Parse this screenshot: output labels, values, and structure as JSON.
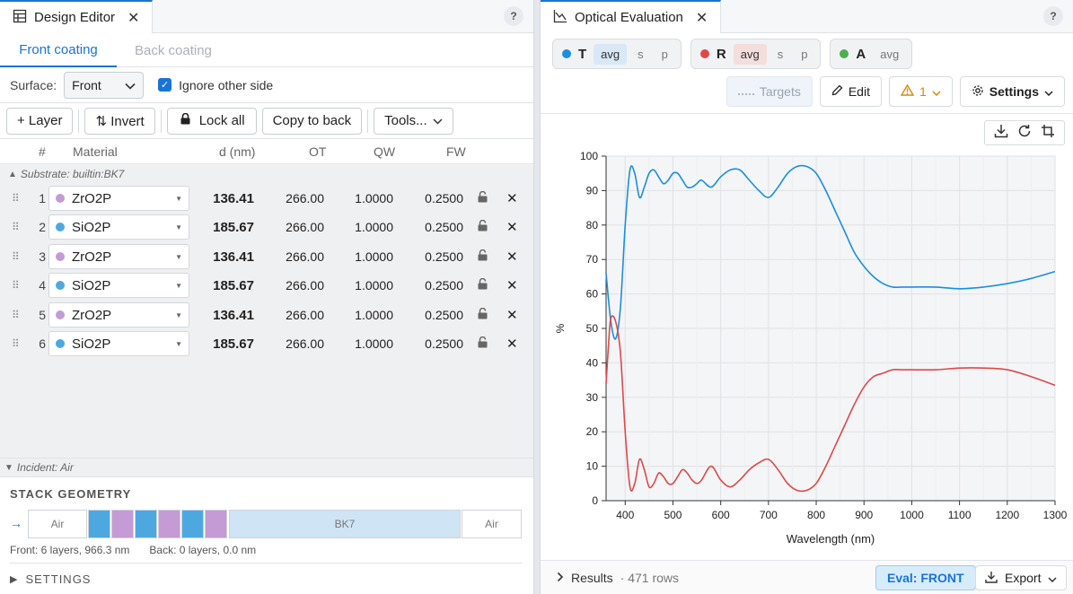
{
  "left": {
    "tab_title": "Design Editor",
    "help": "?",
    "coating_tabs": [
      "Front coating",
      "Back coating"
    ],
    "surface_label": "Surface:",
    "surface_value": "Front",
    "ignore_label": "Ignore other side",
    "toolbar": {
      "layer": "+ Layer",
      "invert": "⇅ Invert",
      "lock_all": "Lock all",
      "copy": "Copy to back",
      "tools": "Tools..."
    },
    "columns": {
      "num": "#",
      "material": "Material",
      "d": "d (nm)",
      "ot": "OT",
      "qw": "QW",
      "fw": "FW"
    },
    "substrate": "Substrate: builtin:BK7",
    "incident": "Incident: Air",
    "layers": [
      {
        "n": "1",
        "material": "ZrO2P",
        "color": "#c49bd4",
        "d": "136.41",
        "ot": "266.00",
        "qw": "1.0000",
        "fw": "0.2500"
      },
      {
        "n": "2",
        "material": "SiO2P",
        "color": "#4ea8e0",
        "d": "185.67",
        "ot": "266.00",
        "qw": "1.0000",
        "fw": "0.2500"
      },
      {
        "n": "3",
        "material": "ZrO2P",
        "color": "#c49bd4",
        "d": "136.41",
        "ot": "266.00",
        "qw": "1.0000",
        "fw": "0.2500"
      },
      {
        "n": "4",
        "material": "SiO2P",
        "color": "#4ea8e0",
        "d": "185.67",
        "ot": "266.00",
        "qw": "1.0000",
        "fw": "0.2500"
      },
      {
        "n": "5",
        "material": "ZrO2P",
        "color": "#c49bd4",
        "d": "136.41",
        "ot": "266.00",
        "qw": "1.0000",
        "fw": "0.2500"
      },
      {
        "n": "6",
        "material": "SiO2P",
        "color": "#4ea8e0",
        "d": "185.67",
        "ot": "266.00",
        "qw": "1.0000",
        "fw": "0.2500"
      }
    ],
    "geometry": {
      "title": "STACK GEOMETRY",
      "incident": "Air",
      "substrate": "BK7",
      "exit": "Air",
      "front_info": "Front: 6 layers, 966.3 nm",
      "back_info": "Back: 0 layers, 0.0 nm"
    },
    "settings": "SETTINGS"
  },
  "right": {
    "tab_title": "Optical Evaluation",
    "help": "?",
    "chips": [
      {
        "label": "T",
        "color": "#1a8fe0",
        "opts": [
          "avg",
          "s",
          "p"
        ]
      },
      {
        "label": "R",
        "color": "#e04848",
        "opts": [
          "avg",
          "s",
          "p"
        ]
      },
      {
        "label": "A",
        "color": "#4caf50",
        "opts": [
          "avg"
        ]
      }
    ],
    "buttons": {
      "targets": "Targets",
      "edit": "Edit",
      "warn": "1",
      "settings": "Settings"
    },
    "footer": {
      "results": "Results",
      "rows": "· 471 rows",
      "eval": "Eval: FRONT",
      "export": "Export"
    }
  },
  "chart_data": {
    "type": "line",
    "xlabel": "Wavelength (nm)",
    "ylabel": "%",
    "xlim": [
      360,
      1300
    ],
    "ylim": [
      0,
      100
    ],
    "xticks": [
      400,
      500,
      600,
      700,
      800,
      900,
      1000,
      1100,
      1200,
      1300
    ],
    "yticks": [
      0,
      10,
      20,
      30,
      40,
      50,
      60,
      70,
      80,
      90,
      100
    ],
    "grid": true,
    "series": [
      {
        "name": "T",
        "color": "#1a8fe0",
        "x": [
          360,
          370,
          380,
          390,
          400,
          410,
          420,
          430,
          440,
          450,
          460,
          470,
          480,
          490,
          500,
          510,
          520,
          530,
          540,
          550,
          560,
          580,
          600,
          620,
          640,
          660,
          680,
          700,
          720,
          740,
          760,
          780,
          800,
          820,
          840,
          860,
          880,
          900,
          920,
          940,
          960,
          980,
          1000,
          1050,
          1100,
          1150,
          1200,
          1250,
          1300
        ],
        "y": [
          66,
          52,
          47,
          56,
          80,
          96,
          95,
          88,
          91,
          95,
          96,
          94,
          92,
          93,
          95,
          95,
          93,
          91,
          91,
          92,
          93,
          91,
          94,
          96,
          96,
          93,
          90,
          88,
          91,
          95,
          97,
          97,
          95,
          90,
          84,
          78,
          72,
          68,
          65,
          63,
          62,
          62,
          62,
          62,
          61.5,
          62,
          63,
          64.5,
          66.5
        ]
      },
      {
        "name": "R",
        "color": "#e04848",
        "x": [
          360,
          365,
          370,
          380,
          390,
          400,
          410,
          420,
          430,
          440,
          450,
          460,
          470,
          480,
          490,
          500,
          510,
          520,
          530,
          540,
          550,
          560,
          580,
          600,
          620,
          640,
          660,
          680,
          700,
          720,
          740,
          760,
          780,
          800,
          820,
          840,
          860,
          880,
          900,
          920,
          940,
          960,
          980,
          1000,
          1050,
          1100,
          1150,
          1200,
          1250,
          1300
        ],
        "y": [
          34,
          45,
          53,
          52,
          43,
          20,
          4,
          5,
          12,
          9,
          4,
          5,
          8,
          7,
          5,
          5,
          7,
          9,
          8,
          6,
          5,
          6,
          10,
          6,
          4,
          6,
          9,
          11,
          12,
          9,
          5,
          3,
          3,
          5,
          10,
          16,
          22,
          28,
          33,
          36,
          37,
          38,
          38,
          38,
          38,
          38.5,
          38.5,
          38,
          36,
          33.5
        ]
      }
    ]
  }
}
